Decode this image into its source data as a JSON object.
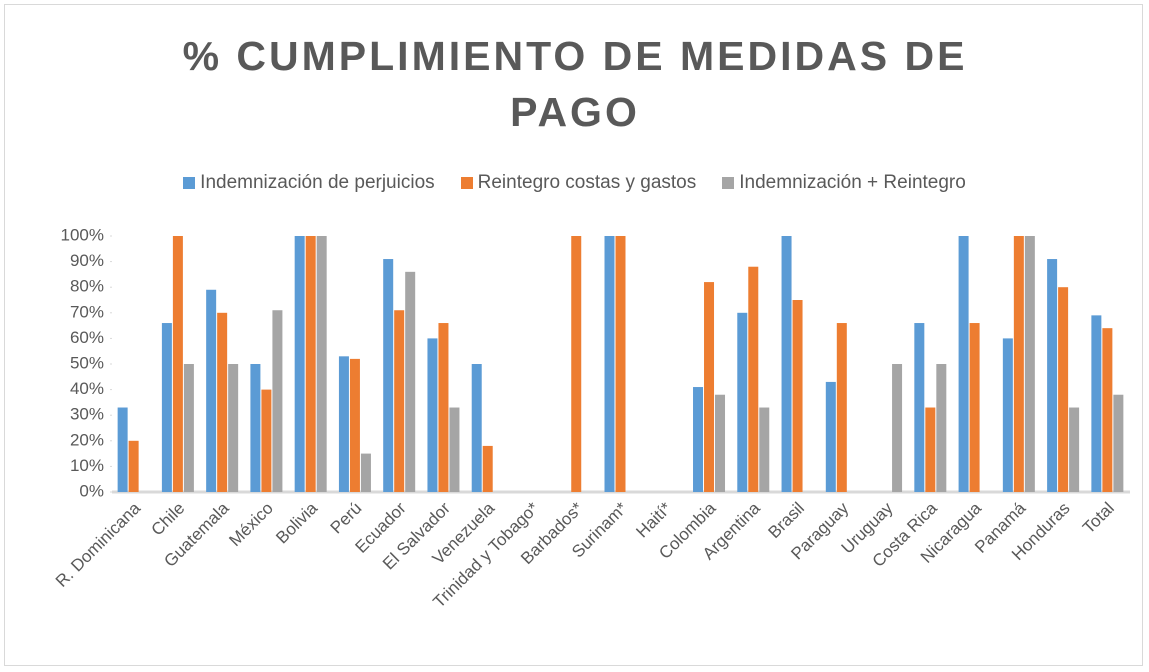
{
  "chart_data": {
    "type": "bar",
    "title": "% CUMPLIMIENTO DE MEDIDAS DE PAGO",
    "categories": [
      "R. Dominicana",
      "Chile",
      "Guatemala",
      "México",
      "Bolivia",
      "Perú",
      "Ecuador",
      "El Salvador",
      "Venezuela",
      "Trinidad y Tobago*",
      "Barbados*",
      "Surinam*",
      "Haití*",
      "Colombia",
      "Argentina",
      "Brasil",
      "Paraguay",
      "Uruguay",
      "Costa Rica",
      "Nicaragua",
      "Panamá",
      "Honduras",
      "Total"
    ],
    "series": [
      {
        "name": "Indemnización de perjuicios",
        "color": "#5b9bd5",
        "values": [
          33,
          66,
          79,
          50,
          100,
          53,
          91,
          60,
          50,
          null,
          null,
          100,
          null,
          41,
          70,
          100,
          43,
          null,
          66,
          100,
          60,
          91,
          69
        ]
      },
      {
        "name": "Reintegro costas y gastos",
        "color": "#ed7d31",
        "values": [
          20,
          100,
          70,
          40,
          100,
          52,
          71,
          66,
          18,
          null,
          100,
          100,
          null,
          82,
          88,
          75,
          66,
          null,
          33,
          66,
          100,
          80,
          64
        ]
      },
      {
        "name": "Indemnización + Reintegro",
        "color": "#a5a5a5",
        "values": [
          null,
          50,
          50,
          71,
          100,
          15,
          86,
          33,
          null,
          null,
          null,
          null,
          null,
          38,
          33,
          null,
          null,
          50,
          50,
          null,
          100,
          33,
          38
        ]
      }
    ],
    "ylim": [
      0,
      100
    ],
    "yticks": [
      {
        "value": 0,
        "label": "0%"
      },
      {
        "value": 10,
        "label": "10%"
      },
      {
        "value": 20,
        "label": "20%"
      },
      {
        "value": 30,
        "label": "30%"
      },
      {
        "value": 40,
        "label": "40%"
      },
      {
        "value": 50,
        "label": "50%"
      },
      {
        "value": 60,
        "label": "60%"
      },
      {
        "value": 70,
        "label": "70%"
      },
      {
        "value": 80,
        "label": "80%"
      },
      {
        "value": 90,
        "label": "90%"
      },
      {
        "value": 100,
        "label": "100%"
      }
    ],
    "legend": "top"
  }
}
